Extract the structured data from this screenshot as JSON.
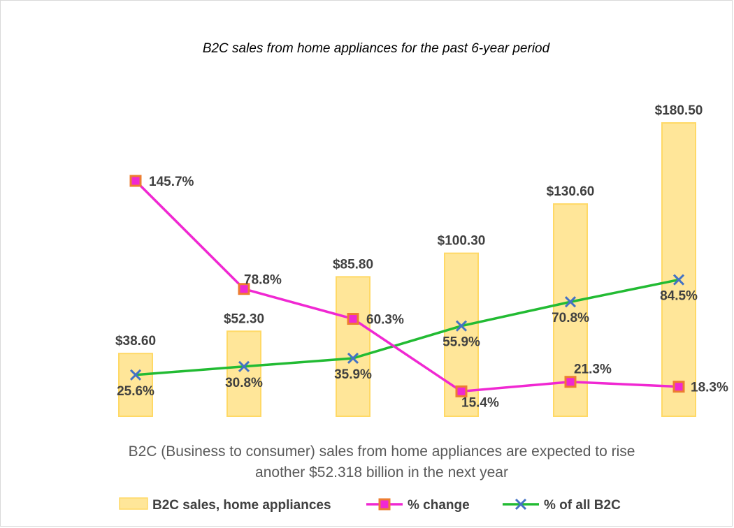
{
  "chart_data": {
    "type": "bar",
    "title": "B2C sales from home appliances for the past 6-year period",
    "subtitle_lines": [
      "B2C (Business to consumer) sales from home appliances are expected to rise",
      "another $52.318 billion in the next year"
    ],
    "categories": [
      "",
      "",
      "",
      "",
      "",
      ""
    ],
    "series": [
      {
        "name": "B2C sales, home appliances",
        "kind": "bar",
        "values": [
          38.6,
          52.3,
          85.8,
          100.3,
          130.6,
          180.5
        ],
        "labels": [
          "$38.60",
          "$52.30",
          "$85.80",
          "$100.30",
          "$130.60",
          "$180.50"
        ],
        "color": "#FFE699",
        "border": "#FFD966"
      },
      {
        "name": "% change",
        "kind": "line",
        "values": [
          145.7,
          78.8,
          60.3,
          15.4,
          21.3,
          18.3
        ],
        "labels": [
          "145.7%",
          "78.8%",
          "60.3%",
          "15.4%",
          "21.3%",
          "18.3%"
        ],
        "color": "#F028D2",
        "marker": "square",
        "marker_fill": "#F028D2",
        "marker_border": "#ED7D31"
      },
      {
        "name": "% of all B2C",
        "kind": "line",
        "values": [
          25.6,
          30.8,
          35.9,
          55.9,
          70.8,
          84.5
        ],
        "labels": [
          "25.6%",
          "30.8%",
          "35.9%",
          "55.9%",
          "70.8%",
          "84.5%"
        ],
        "color": "#22BB33",
        "marker": "x",
        "marker_color": "#4472C4"
      }
    ],
    "grid": false,
    "legend": "bottom"
  }
}
